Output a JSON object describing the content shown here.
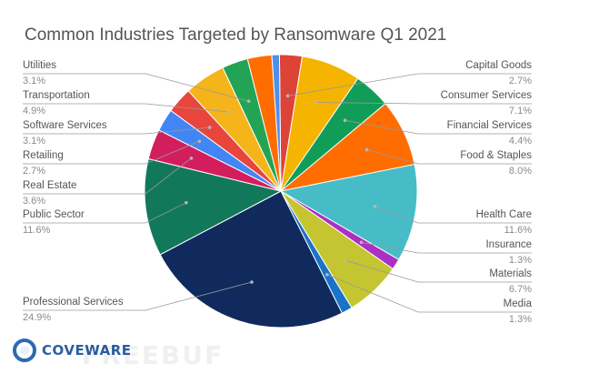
{
  "chart_data": {
    "type": "pie",
    "title": "Common Industries Targeted by Ransomware Q1 2021",
    "slices": [
      {
        "label": "Capital Goods",
        "value": 2.7,
        "value_text": "2.7%",
        "color": "#db4437"
      },
      {
        "label": "Consumer Services",
        "value": 7.1,
        "value_text": "7.1%",
        "color": "#f4b400"
      },
      {
        "label": "Financial Services",
        "value": 4.4,
        "value_text": "4.4%",
        "color": "#0f9d58"
      },
      {
        "label": "Food & Staples",
        "value": 8.0,
        "value_text": "8.0%",
        "color": "#ff6d00"
      },
      {
        "label": "Health Care",
        "value": 11.6,
        "value_text": "11.6%",
        "color": "#46bdc6"
      },
      {
        "label": "Insurance",
        "value": 1.3,
        "value_text": "1.3%",
        "color": "#ab30c4"
      },
      {
        "label": "Materials",
        "value": 6.7,
        "value_text": "6.7%",
        "color": "#c4c530"
      },
      {
        "label": "Media",
        "value": 1.3,
        "value_text": "1.3%",
        "color": "#1a73c8"
      },
      {
        "label": "Professional Services",
        "value": 24.9,
        "value_text": "24.9%",
        "color": "#102a5e"
      },
      {
        "label": "Public Sector",
        "value": 11.6,
        "value_text": "11.6%",
        "color": "#12785a"
      },
      {
        "label": "Real Estate",
        "value": 3.6,
        "value_text": "3.6%",
        "color": "#d31e5d"
      },
      {
        "label": "Retailing",
        "value": 2.7,
        "value_text": "2.7%",
        "color": "#4285f4"
      },
      {
        "label": "Software Services",
        "value": 3.1,
        "value_text": "3.1%",
        "color": "#e8453c"
      },
      {
        "label": "Transportation",
        "value": 4.9,
        "value_text": "4.9%",
        "color": "#f6b41b"
      },
      {
        "label": "Utilities",
        "value": 3.1,
        "value_text": "3.1%",
        "color": "#23a455"
      },
      {
        "label": "",
        "value": 2.9,
        "value_text": "",
        "color": "#ff6d00"
      },
      {
        "label": "",
        "value": 0.9,
        "value_text": "",
        "color": "#4e8ff0"
      }
    ],
    "legend": "none"
  },
  "brand": {
    "logo_text": "COVEWARE",
    "watermark_text": "FREEBUF"
  }
}
